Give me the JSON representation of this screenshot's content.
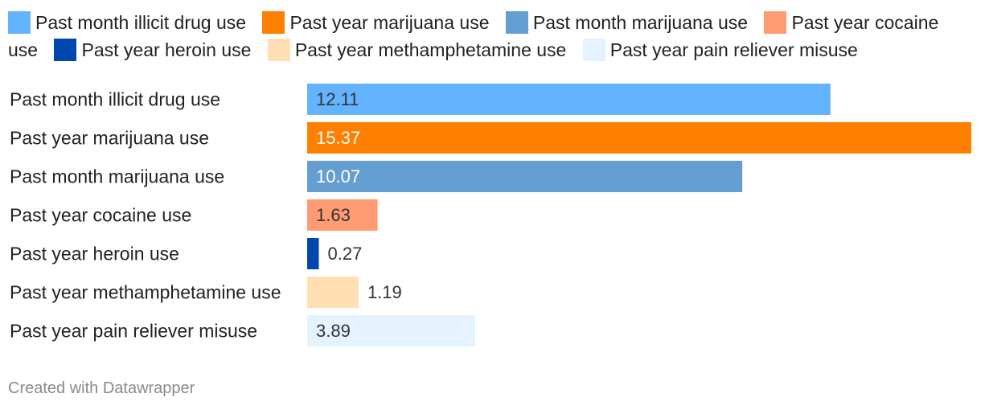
{
  "chart_data": {
    "type": "bar",
    "orientation": "horizontal",
    "categories": [
      "Past month illicit drug use",
      "Past year marijuana use",
      "Past month marijuana use",
      "Past year cocaine use",
      "Past year heroin use",
      "Past year methamphetamine use",
      "Past year pain reliever misuse"
    ],
    "values": [
      12.11,
      15.37,
      10.07,
      1.63,
      0.27,
      1.19,
      3.89
    ],
    "value_labels": [
      "12.11",
      "15.37",
      "10.07",
      "1.63",
      "0.27",
      "1.19",
      "3.89"
    ],
    "colors": [
      "#64b3ff",
      "#ff7f00",
      "#659ed1",
      "#ff9b72",
      "#0048ad",
      "#ffdfb3",
      "#e5f2ff"
    ],
    "xlim": [
      0,
      15.37
    ],
    "legend": {
      "position": "top",
      "entries": [
        "Past month illicit drug use",
        "Past year marijuana use",
        "Past month marijuana use",
        "Past year cocaine use",
        "Past year heroin use",
        "Past year methamphetamine use",
        "Past year pain reliever misuse"
      ]
    },
    "title": "",
    "xlabel": "",
    "ylabel": ""
  },
  "footer": {
    "credit": "Created with Datawrapper"
  }
}
